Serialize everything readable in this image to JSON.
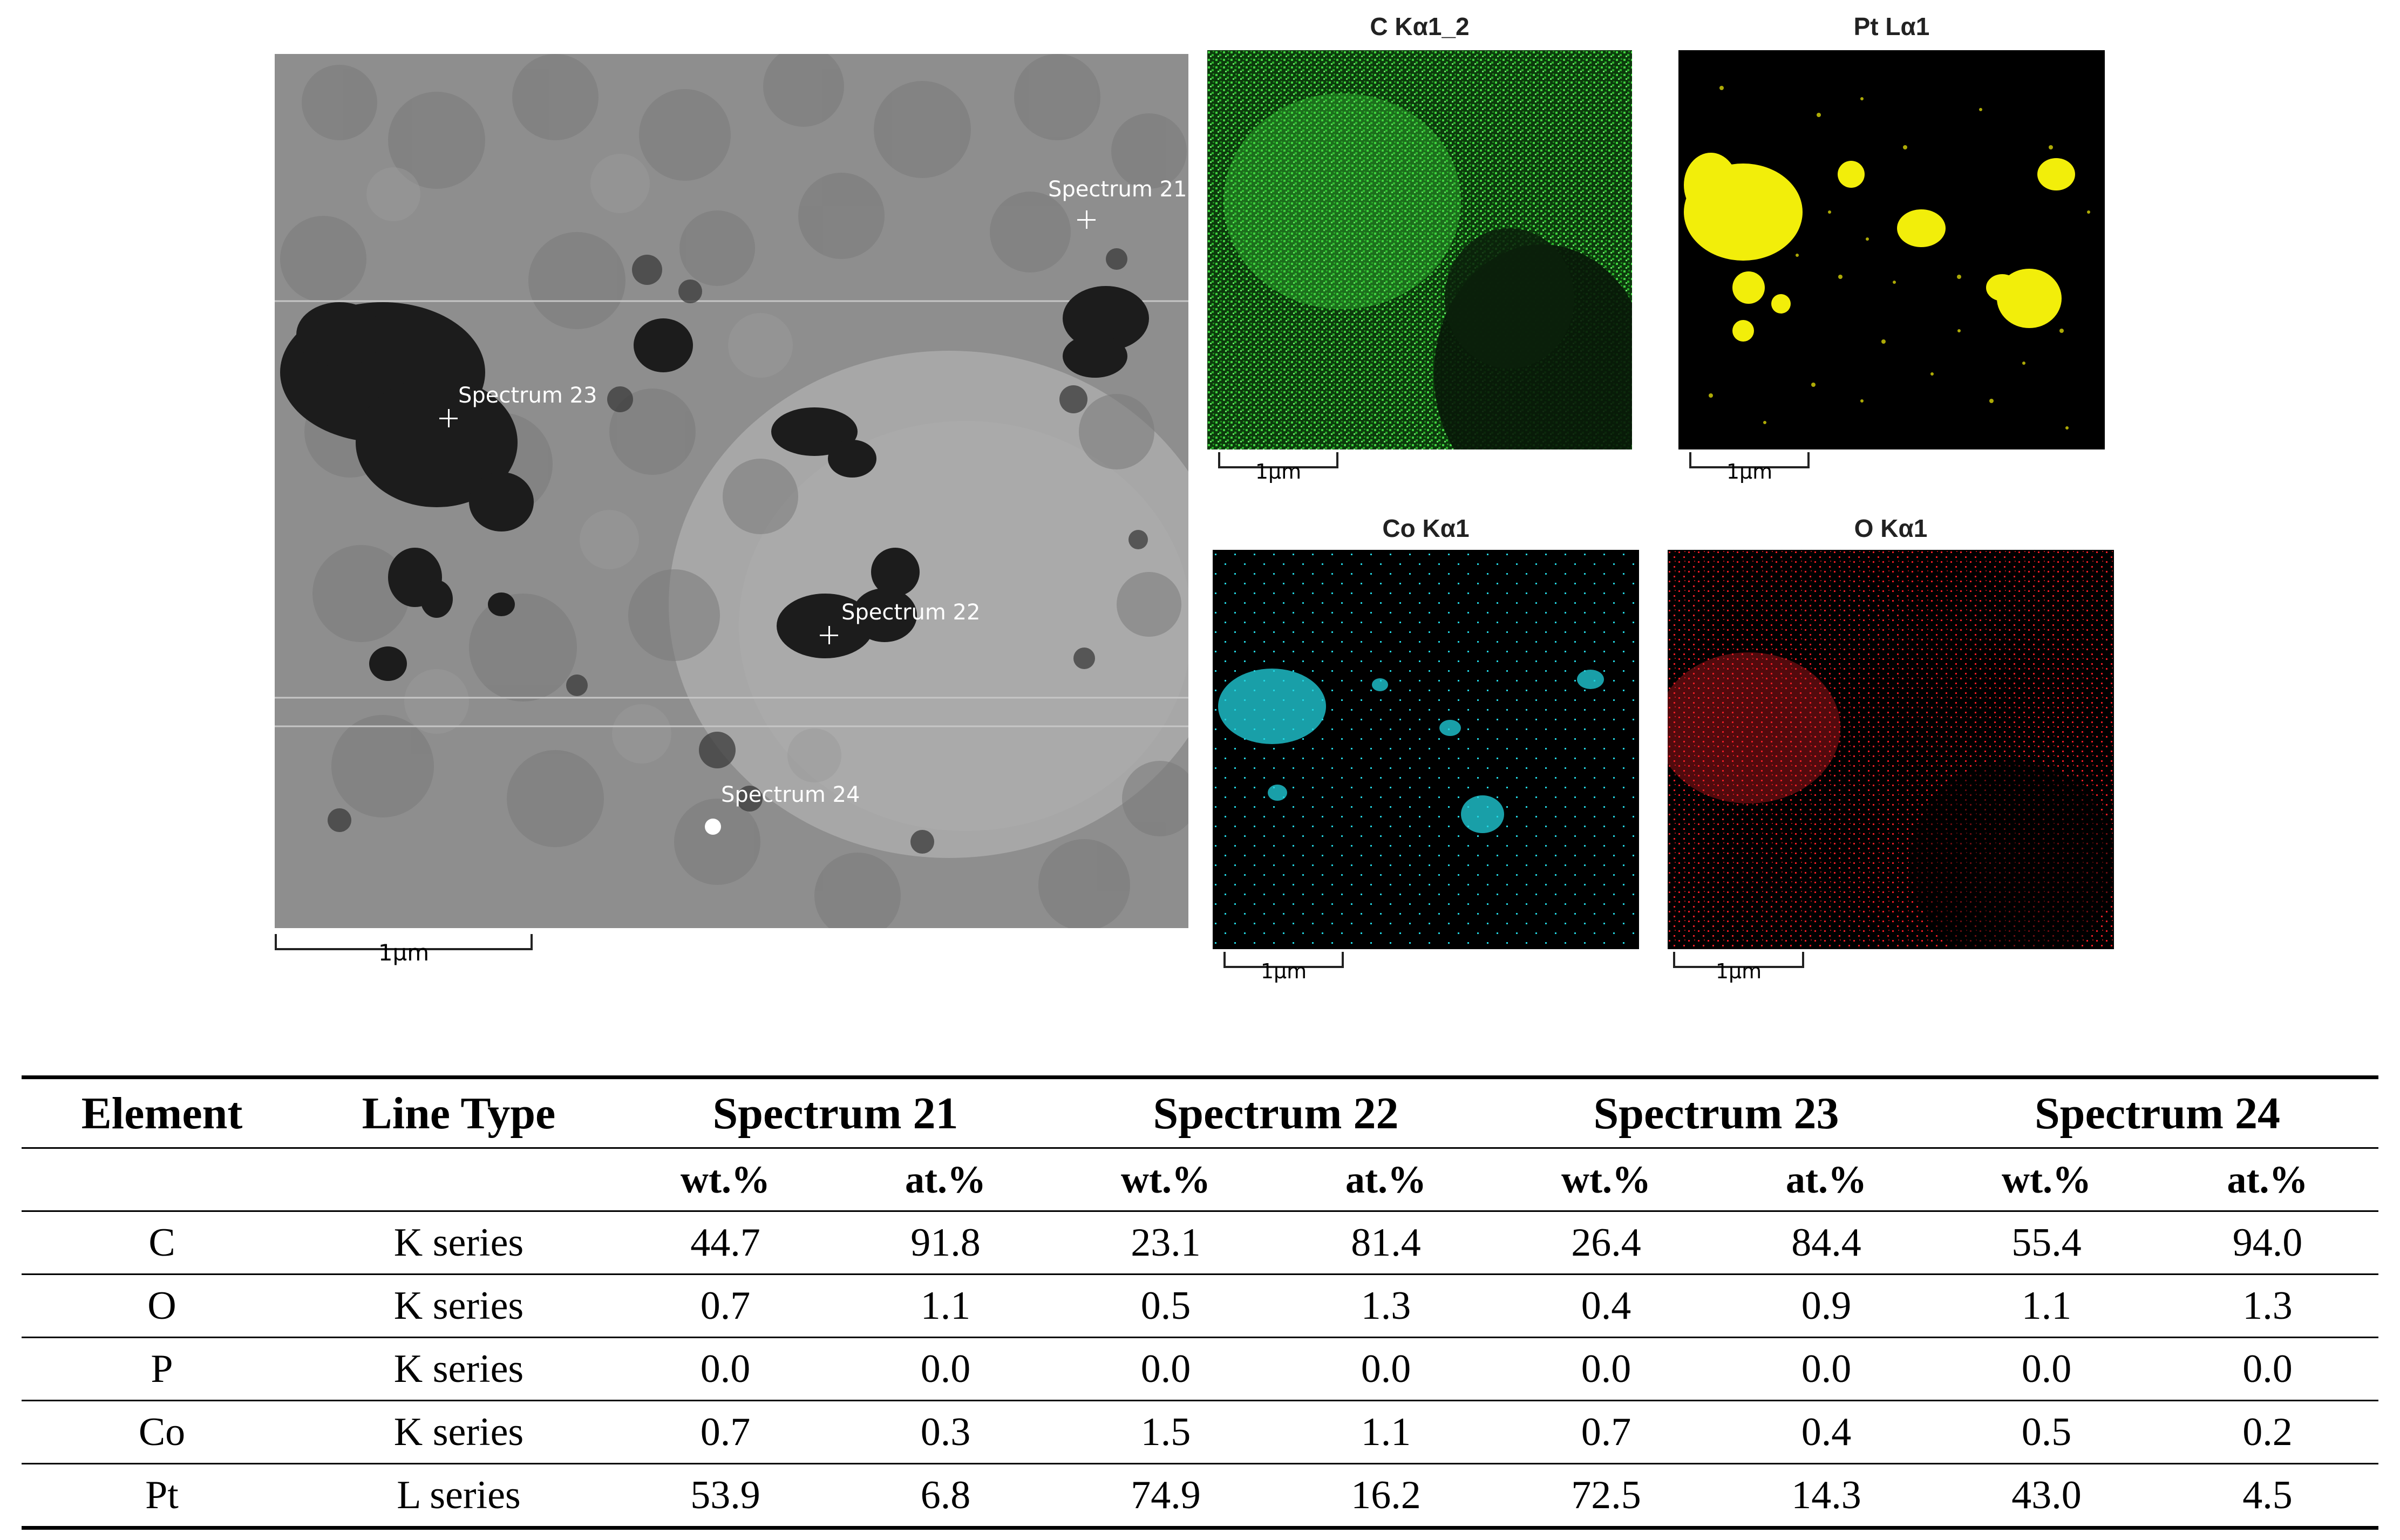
{
  "figure": {
    "tem_image": {
      "spectra": [
        {
          "label": "Spectrum 21",
          "marker": "cross"
        },
        {
          "label": "Spectrum 23",
          "marker": "cross"
        },
        {
          "label": "Spectrum 22",
          "marker": "cross"
        },
        {
          "label": "Spectrum 24",
          "marker": "dot"
        }
      ],
      "scale_label": "1µm"
    },
    "maps": [
      {
        "title": "C Kα1_2",
        "color": "#22c022",
        "scale_label": "1µm"
      },
      {
        "title": "Pt Lα1",
        "color": "#f2ee0a",
        "scale_label": "1µm"
      },
      {
        "title": "Co Kα1",
        "color": "#22d4e0",
        "scale_label": "1µm"
      },
      {
        "title": "O Kα1",
        "color": "#ec1c24",
        "scale_label": "1µm"
      }
    ]
  },
  "table": {
    "headers": [
      "Element",
      "Line Type",
      "Spectrum 21",
      "Spectrum 22",
      "Spectrum 23",
      "Spectrum 24"
    ],
    "subheaders": [
      "wt.%",
      "at.%"
    ],
    "rows": [
      {
        "element": "C",
        "line": "K series",
        "values": [
          "44.7",
          "91.8",
          "23.1",
          "81.4",
          "26.4",
          "84.4",
          "55.4",
          "94.0"
        ]
      },
      {
        "element": "O",
        "line": "K series",
        "values": [
          "0.7",
          "1.1",
          "0.5",
          "1.3",
          "0.4",
          "0.9",
          "1.1",
          "1.3"
        ]
      },
      {
        "element": "P",
        "line": "K series",
        "values": [
          "0.0",
          "0.0",
          "0.0",
          "0.0",
          "0.0",
          "0.0",
          "0.0",
          "0.0"
        ]
      },
      {
        "element": "Co",
        "line": "K series",
        "values": [
          "0.7",
          "0.3",
          "1.5",
          "1.1",
          "0.7",
          "0.4",
          "0.5",
          "0.2"
        ]
      },
      {
        "element": "Pt",
        "line": "L series",
        "values": [
          "53.9",
          "6.8",
          "74.9",
          "16.2",
          "72.5",
          "14.3",
          "43.0",
          "4.5"
        ]
      }
    ]
  }
}
